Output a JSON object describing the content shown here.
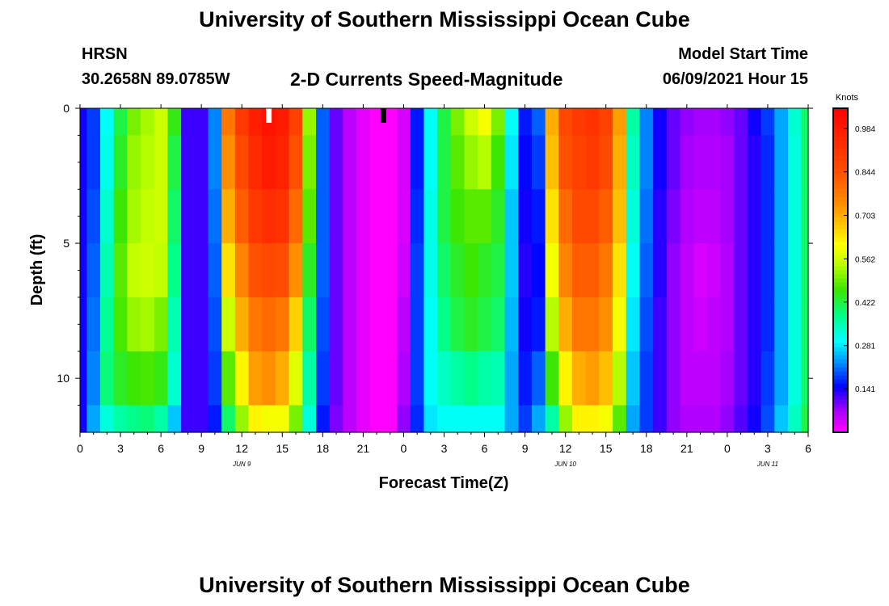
{
  "page": {
    "title_top": "University of Southern Mississippi Ocean Cube",
    "title_bottom": "University of Southern Mississippi Ocean Cube"
  },
  "header": {
    "station": "HRSN",
    "coords": "30.2658N  89.0785W",
    "plot_title": "2-D Currents Speed-Magnitude",
    "model_label": "Model Start Time",
    "model_time": "06/09/2021 Hour 15"
  },
  "chart_data": {
    "type": "heatmap",
    "title": "2-D Currents Speed-Magnitude",
    "xlabel": "Forecast Time(Z)",
    "ylabel": "Depth (ft)",
    "x_ticks": [
      "0",
      "3",
      "6",
      "9",
      "12",
      "15",
      "18",
      "21",
      "0",
      "3",
      "6",
      "9",
      "12",
      "15",
      "18",
      "21",
      "0",
      "3",
      "6"
    ],
    "x_dates": [
      "JUN 9",
      "JUN 10",
      "JUN 11"
    ],
    "x_range_hours": [
      0,
      54
    ],
    "y_ticks": [
      "0",
      "5",
      "10"
    ],
    "y_range_ft": [
      0,
      12
    ],
    "colorbar_label": "Knots",
    "colorbar_ticks": [
      "0.984",
      "0.844",
      "0.703",
      "0.562",
      "0.422",
      "0.281",
      "0.141"
    ],
    "colorbar_range": [
      0,
      1.05
    ],
    "time_steps_hours": [
      0,
      1,
      2,
      3,
      4,
      5,
      6,
      7,
      8,
      9,
      10,
      11,
      12,
      13,
      14,
      15,
      16,
      17,
      18,
      19,
      20,
      21,
      22,
      23,
      24,
      25,
      26,
      27,
      28,
      29,
      30,
      31,
      32,
      33,
      34,
      35,
      36,
      37,
      38,
      39,
      40,
      41,
      42,
      43,
      44,
      45,
      46,
      47,
      48,
      49,
      50,
      51,
      52,
      53,
      54
    ],
    "depth_levels_ft": [
      0,
      2,
      4,
      6,
      8,
      10,
      12
    ],
    "speed_knots": [
      [
        0.14,
        0.14,
        0.14,
        0.14,
        0.14,
        0.14,
        0.14
      ],
      [
        0.18,
        0.18,
        0.19,
        0.2,
        0.21,
        0.22,
        0.24
      ],
      [
        0.3,
        0.31,
        0.33,
        0.35,
        0.37,
        0.39,
        0.32
      ],
      [
        0.42,
        0.44,
        0.46,
        0.48,
        0.47,
        0.44,
        0.36
      ],
      [
        0.5,
        0.52,
        0.53,
        0.55,
        0.52,
        0.46,
        0.38
      ],
      [
        0.53,
        0.54,
        0.55,
        0.56,
        0.53,
        0.47,
        0.39
      ],
      [
        0.56,
        0.56,
        0.56,
        0.55,
        0.5,
        0.45,
        0.36
      ],
      [
        0.45,
        0.42,
        0.4,
        0.38,
        0.35,
        0.33,
        0.26
      ],
      [
        0.12,
        0.12,
        0.12,
        0.12,
        0.12,
        0.12,
        0.12
      ],
      [
        0.12,
        0.12,
        0.12,
        0.12,
        0.12,
        0.12,
        0.12
      ],
      [
        0.22,
        0.22,
        0.21,
        0.2,
        0.19,
        0.18,
        0.16
      ],
      [
        0.78,
        0.74,
        0.7,
        0.64,
        0.56,
        0.48,
        0.4
      ],
      [
        0.9,
        0.86,
        0.82,
        0.76,
        0.7,
        0.62,
        0.52
      ],
      [
        0.97,
        0.94,
        0.9,
        0.84,
        0.78,
        0.72,
        0.62
      ],
      [
        1.0,
        0.98,
        0.93,
        0.86,
        0.8,
        0.74,
        0.6
      ],
      [
        0.98,
        0.96,
        0.92,
        0.85,
        0.78,
        0.7,
        0.6
      ],
      [
        0.88,
        0.84,
        0.8,
        0.74,
        0.66,
        0.58,
        0.5
      ],
      [
        0.52,
        0.5,
        0.48,
        0.44,
        0.4,
        0.36,
        0.32
      ],
      [
        0.2,
        0.2,
        0.2,
        0.2,
        0.19,
        0.18,
        0.16
      ],
      [
        0.1,
        0.1,
        0.1,
        0.1,
        0.1,
        0.1,
        0.09
      ],
      [
        0.05,
        0.05,
        0.05,
        0.05,
        0.05,
        0.05,
        0.05
      ],
      [
        0.02,
        0.02,
        0.02,
        0.02,
        0.02,
        0.02,
        0.02
      ],
      [
        0.0,
        0.0,
        0.0,
        0.0,
        0.0,
        0.0,
        0.0
      ],
      [
        0.0,
        0.0,
        0.0,
        0.0,
        0.0,
        0.0,
        0.0
      ],
      [
        0.03,
        0.03,
        0.03,
        0.04,
        0.05,
        0.06,
        0.08
      ],
      [
        0.16,
        0.16,
        0.17,
        0.18,
        0.18,
        0.18,
        0.17
      ],
      [
        0.3,
        0.3,
        0.31,
        0.31,
        0.3,
        0.3,
        0.28
      ],
      [
        0.42,
        0.42,
        0.42,
        0.4,
        0.38,
        0.34,
        0.3
      ],
      [
        0.5,
        0.48,
        0.46,
        0.44,
        0.42,
        0.36,
        0.3
      ],
      [
        0.56,
        0.52,
        0.48,
        0.46,
        0.44,
        0.38,
        0.3
      ],
      [
        0.6,
        0.54,
        0.48,
        0.44,
        0.42,
        0.36,
        0.3
      ],
      [
        0.5,
        0.46,
        0.44,
        0.42,
        0.4,
        0.35,
        0.3
      ],
      [
        0.3,
        0.28,
        0.26,
        0.26,
        0.25,
        0.24,
        0.24
      ],
      [
        0.16,
        0.15,
        0.14,
        0.13,
        0.14,
        0.16,
        0.18
      ],
      [
        0.2,
        0.18,
        0.16,
        0.15,
        0.16,
        0.2,
        0.24
      ],
      [
        0.7,
        0.68,
        0.64,
        0.6,
        0.54,
        0.46,
        0.36
      ],
      [
        0.86,
        0.84,
        0.8,
        0.76,
        0.7,
        0.62,
        0.52
      ],
      [
        0.9,
        0.88,
        0.86,
        0.82,
        0.78,
        0.7,
        0.62
      ],
      [
        0.92,
        0.9,
        0.86,
        0.82,
        0.78,
        0.72,
        0.62
      ],
      [
        0.88,
        0.86,
        0.82,
        0.78,
        0.74,
        0.68,
        0.6
      ],
      [
        0.72,
        0.7,
        0.68,
        0.64,
        0.6,
        0.54,
        0.48
      ],
      [
        0.36,
        0.34,
        0.32,
        0.3,
        0.28,
        0.26,
        0.24
      ],
      [
        0.22,
        0.22,
        0.21,
        0.2,
        0.19,
        0.18,
        0.18
      ],
      [
        0.14,
        0.14,
        0.13,
        0.13,
        0.12,
        0.12,
        0.12
      ],
      [
        0.1,
        0.1,
        0.09,
        0.08,
        0.08,
        0.08,
        0.08
      ],
      [
        0.08,
        0.07,
        0.06,
        0.05,
        0.05,
        0.05,
        0.06
      ],
      [
        0.07,
        0.06,
        0.05,
        0.03,
        0.04,
        0.05,
        0.06
      ],
      [
        0.07,
        0.06,
        0.05,
        0.04,
        0.05,
        0.05,
        0.06
      ],
      [
        0.08,
        0.07,
        0.07,
        0.06,
        0.06,
        0.07,
        0.08
      ],
      [
        0.1,
        0.1,
        0.1,
        0.1,
        0.1,
        0.1,
        0.11
      ],
      [
        0.14,
        0.13,
        0.13,
        0.13,
        0.13,
        0.13,
        0.14
      ],
      [
        0.18,
        0.17,
        0.17,
        0.17,
        0.17,
        0.18,
        0.19
      ],
      [
        0.24,
        0.24,
        0.24,
        0.24,
        0.24,
        0.24,
        0.26
      ],
      [
        0.33,
        0.32,
        0.32,
        0.32,
        0.32,
        0.32,
        0.34
      ],
      [
        0.4,
        0.4,
        0.4,
        0.4,
        0.4,
        0.4,
        0.42
      ]
    ],
    "markers": [
      {
        "hour": 14,
        "color": "#ffffff"
      },
      {
        "hour": 22.5,
        "color": "#000000"
      }
    ]
  }
}
